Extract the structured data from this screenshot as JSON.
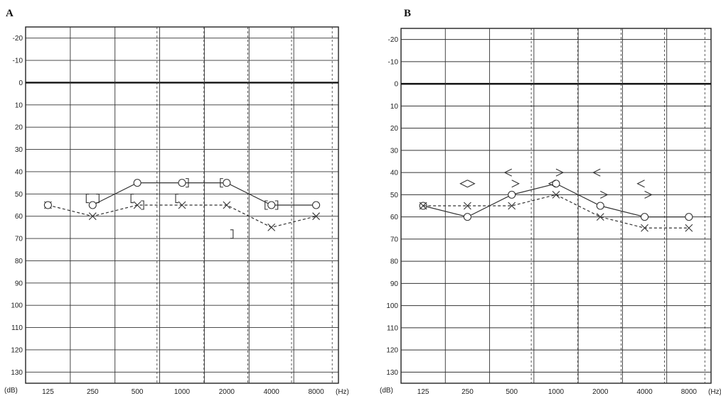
{
  "chart_data": [
    {
      "type": "line",
      "panel_label": "A",
      "x_tick_labels": [
        "125",
        "250",
        "500",
        "1000",
        "2000",
        "4000",
        "8000"
      ],
      "x_unit_label": "(Hz)",
      "y_unit_label": "(dB)",
      "y_tick_labels": [
        "-20",
        "-10",
        "0",
        "10",
        "20",
        "30",
        "40",
        "50",
        "60",
        "70",
        "80",
        "90",
        "100",
        "110",
        "120",
        "130"
      ],
      "ylim": [
        -25,
        135
      ],
      "y_inverted": true,
      "grid": true,
      "series": [
        {
          "style": "solid",
          "marker": "circle",
          "x": [
            250,
            500,
            1000,
            2000,
            4000,
            8000
          ],
          "values": [
            55,
            45,
            45,
            45,
            55,
            55
          ]
        },
        {
          "style": "dashed",
          "marker": "cross",
          "x": [
            125,
            250,
            500,
            1000,
            2000,
            4000,
            8000
          ],
          "values": [
            55,
            60,
            55,
            55,
            55,
            65,
            60
          ]
        }
      ],
      "symbols": [
        {
          "marker": "circle",
          "x": 125,
          "value": 55
        },
        {
          "marker": "bracket-left",
          "x": 250,
          "value": 52
        },
        {
          "marker": "bracket-right",
          "x": 250,
          "value": 52
        },
        {
          "marker": "bracket-left",
          "x": 500,
          "value": 52
        },
        {
          "marker": "bracket-right",
          "x": 500,
          "value": 55
        },
        {
          "marker": "bracket-left",
          "x": 1000,
          "value": 52
        },
        {
          "marker": "bracket-right",
          "x": 1000,
          "value": 45
        },
        {
          "marker": "bracket-left",
          "x": 2000,
          "value": 45
        },
        {
          "marker": "bracket-right",
          "x": 2000,
          "value": 68
        },
        {
          "marker": "bracket-left",
          "x": 4000,
          "value": 55
        },
        {
          "marker": "bracket-right",
          "x": 4000,
          "value": 55
        }
      ]
    },
    {
      "type": "line",
      "panel_label": "B",
      "x_tick_labels": [
        "125",
        "250",
        "500",
        "1000",
        "2000",
        "4000",
        "8000"
      ],
      "x_unit_label": "(Hz)",
      "y_unit_label": "(dB)",
      "y_tick_labels": [
        "-20",
        "-10",
        "0",
        "10",
        "20",
        "30",
        "40",
        "50",
        "60",
        "70",
        "80",
        "90",
        "100",
        "110",
        "120",
        "130"
      ],
      "ylim": [
        -25,
        135
      ],
      "y_inverted": true,
      "grid": true,
      "series": [
        {
          "style": "solid",
          "marker": "circle",
          "x": [
            125,
            250,
            500,
            1000,
            2000,
            4000,
            8000
          ],
          "values": [
            55,
            60,
            50,
            45,
            55,
            60,
            60
          ]
        },
        {
          "style": "dashed",
          "marker": "cross",
          "x": [
            125,
            250,
            500,
            1000,
            2000,
            4000,
            8000
          ],
          "values": [
            55,
            55,
            55,
            50,
            60,
            65,
            65
          ]
        }
      ],
      "symbols": [
        {
          "marker": "angle-left",
          "x": 250,
          "value": 45
        },
        {
          "marker": "angle-right",
          "x": 250,
          "value": 45
        },
        {
          "marker": "angle-left",
          "x": 500,
          "value": 40
        },
        {
          "marker": "angle-right",
          "x": 500,
          "value": 45
        },
        {
          "marker": "angle-left",
          "x": 1000,
          "value": 45
        },
        {
          "marker": "angle-right",
          "x": 1000,
          "value": 40
        },
        {
          "marker": "angle-left",
          "x": 2000,
          "value": 40
        },
        {
          "marker": "angle-right",
          "x": 2000,
          "value": 50
        },
        {
          "marker": "angle-left",
          "x": 4000,
          "value": 45
        },
        {
          "marker": "angle-right",
          "x": 4000,
          "value": 50
        }
      ]
    }
  ]
}
